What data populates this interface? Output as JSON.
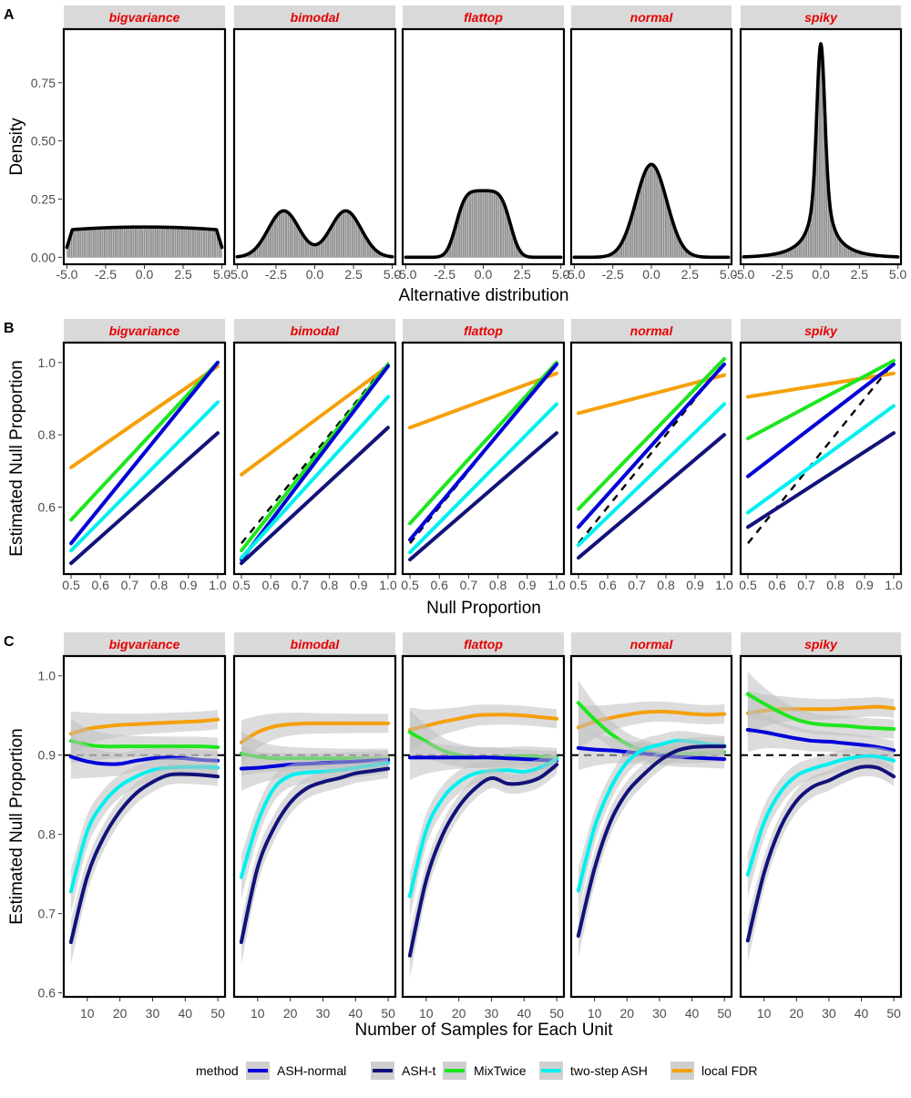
{
  "facets": [
    "bigvariance",
    "bimodal",
    "flattop",
    "normal",
    "spiky"
  ],
  "colors": {
    "ASH-normal": "#0000d8",
    "ASH-t": "#12127a",
    "MixTwice": "#1ee61e",
    "two-step ASH": "#00f0f0",
    "local FDR": "#f5a00a",
    "facet_label": "#e60000",
    "strip_bg": "#d9d9d9"
  },
  "panel_letters": [
    "A",
    "B",
    "C"
  ],
  "legend": {
    "title": "method",
    "items": [
      "ASH-normal",
      "ASH-t",
      "MixTwice",
      "two-step ASH",
      "local FDR"
    ]
  },
  "chart_data": [
    {
      "id": "A",
      "type": "area",
      "description_type": "density histogram with smooth density curve",
      "xlabel": "Alternative distribution",
      "ylabel": "Density",
      "xlim": [
        -5.2,
        5.2
      ],
      "ylim": [
        -0.03,
        0.98
      ],
      "xticks": [
        -5,
        -2.5,
        0,
        2.5,
        5
      ],
      "xticklabels": [
        "-5.0",
        "-2.5",
        "0.0",
        "2.5",
        "5.0"
      ],
      "yticks": [
        0,
        0.25,
        0.5,
        0.75
      ],
      "yticklabels": [
        "0.00",
        "0.25",
        "0.50",
        "0.75"
      ],
      "density_params": {
        "bigvariance": {
          "kind": "uniform_smooth",
          "height": 0.13,
          "range": [
            -5,
            5
          ]
        },
        "bimodal": {
          "kind": "mixture",
          "components": [
            {
              "mean": -2,
              "sd": 1,
              "weight": 0.5
            },
            {
              "mean": 2,
              "sd": 1,
              "weight": 0.5
            }
          ]
        },
        "flattop": {
          "kind": "mixture",
          "components": [
            {
              "mean": -1.5,
              "sd": 0.5,
              "weight": 0.143
            },
            {
              "mean": -1,
              "sd": 0.5,
              "weight": 0.143
            },
            {
              "mean": -0.5,
              "sd": 0.5,
              "weight": 0.143
            },
            {
              "mean": 0,
              "sd": 0.5,
              "weight": 0.143
            },
            {
              "mean": 0.5,
              "sd": 0.5,
              "weight": 0.143
            },
            {
              "mean": 1,
              "sd": 0.5,
              "weight": 0.143
            },
            {
              "mean": 1.5,
              "sd": 0.5,
              "weight": 0.142
            }
          ]
        },
        "normal": {
          "kind": "mixture",
          "components": [
            {
              "mean": 0,
              "sd": 1,
              "weight": 1
            }
          ]
        },
        "spiky": {
          "kind": "mixture",
          "components": [
            {
              "mean": 0,
              "sd": 0.25,
              "weight": 0.4
            },
            {
              "mean": 0,
              "sd": 0.5,
              "weight": 0.2
            },
            {
              "mean": 0,
              "sd": 1,
              "weight": 0.2
            },
            {
              "mean": 0,
              "sd": 2,
              "weight": 0.2
            }
          ]
        }
      }
    },
    {
      "id": "B",
      "type": "line",
      "xlabel": "Null Proportion",
      "ylabel": "Estimated Null Proportion",
      "xlim": [
        0.475,
        1.025
      ],
      "ylim": [
        0.415,
        1.055
      ],
      "xticks": [
        0.5,
        0.6,
        0.7,
        0.8,
        0.9,
        1.0
      ],
      "xticklabels": [
        "0.5",
        "0.6",
        "0.7",
        "0.8",
        "0.9",
        "1.0"
      ],
      "yticks": [
        0.6,
        0.8,
        1.0
      ],
      "yticklabels": [
        "0.6",
        "0.8",
        "1.0"
      ],
      "x": [
        0.5,
        1.0
      ],
      "reference_line": {
        "label": "y = x",
        "style": "dashed"
      },
      "series": {
        "bigvariance": [
          {
            "name": "local FDR",
            "values": [
              0.71,
              0.99
            ]
          },
          {
            "name": "MixTwice",
            "values": [
              0.565,
              1.0
            ]
          },
          {
            "name": "ASH-normal",
            "values": [
              0.5,
              1.0
            ]
          },
          {
            "name": "two-step ASH",
            "values": [
              0.48,
              0.89
            ]
          },
          {
            "name": "ASH-t",
            "values": [
              0.445,
              0.805
            ]
          }
        ],
        "bimodal": [
          {
            "name": "local FDR",
            "values": [
              0.69,
              0.99
            ]
          },
          {
            "name": "MixTwice",
            "values": [
              0.48,
              0.995
            ]
          },
          {
            "name": "ASH-normal",
            "values": [
              0.455,
              0.99
            ]
          },
          {
            "name": "two-step ASH",
            "values": [
              0.46,
              0.905
            ]
          },
          {
            "name": "ASH-t",
            "values": [
              0.445,
              0.82
            ]
          }
        ],
        "flattop": [
          {
            "name": "local FDR",
            "values": [
              0.82,
              0.97
            ]
          },
          {
            "name": "MixTwice",
            "values": [
              0.555,
              1.0
            ]
          },
          {
            "name": "ASH-normal",
            "values": [
              0.51,
              0.995
            ]
          },
          {
            "name": "two-step ASH",
            "values": [
              0.475,
              0.885
            ]
          },
          {
            "name": "ASH-t",
            "values": [
              0.455,
              0.805
            ]
          }
        ],
        "normal": [
          {
            "name": "local FDR",
            "values": [
              0.86,
              0.965
            ]
          },
          {
            "name": "MixTwice",
            "values": [
              0.595,
              1.01
            ]
          },
          {
            "name": "ASH-normal",
            "values": [
              0.545,
              0.995
            ]
          },
          {
            "name": "two-step ASH",
            "values": [
              0.495,
              0.885
            ]
          },
          {
            "name": "ASH-t",
            "values": [
              0.46,
              0.8
            ]
          }
        ],
        "spiky": [
          {
            "name": "local FDR",
            "values": [
              0.905,
              0.97
            ]
          },
          {
            "name": "MixTwice",
            "values": [
              0.79,
              1.005
            ]
          },
          {
            "name": "ASH-normal",
            "values": [
              0.685,
              0.995
            ]
          },
          {
            "name": "two-step ASH",
            "values": [
              0.585,
              0.88
            ]
          },
          {
            "name": "ASH-t",
            "values": [
              0.545,
              0.805
            ]
          }
        ]
      }
    },
    {
      "id": "C",
      "type": "line",
      "xlabel": "Number of Samples for Each Unit",
      "ylabel": "Estimated Null Proportion",
      "xlim": [
        2.8,
        52.2
      ],
      "ylim": [
        0.595,
        1.025
      ],
      "xticks": [
        10,
        20,
        30,
        40,
        50
      ],
      "xticklabels": [
        "10",
        "20",
        "30",
        "40",
        "50"
      ],
      "yticks": [
        0.6,
        0.7,
        0.8,
        0.9,
        1.0
      ],
      "yticklabels": [
        "0.6",
        "0.7",
        "0.8",
        "0.9",
        "1.0"
      ],
      "x": [
        5,
        10,
        15,
        20,
        25,
        30,
        35,
        40,
        45,
        50
      ],
      "reference_line": {
        "label": "y = 0.9",
        "value": 0.9,
        "style": "dashed"
      },
      "series": {
        "bigvariance": [
          {
            "name": "local FDR",
            "values": [
              0.927,
              0.933,
              0.936,
              0.938,
              0.939,
              0.94,
              0.941,
              0.942,
              0.943,
              0.945
            ]
          },
          {
            "name": "MixTwice",
            "values": [
              0.918,
              0.913,
              0.911,
              0.911,
              0.911,
              0.911,
              0.911,
              0.911,
              0.911,
              0.91
            ]
          },
          {
            "name": "ASH-normal",
            "values": [
              0.898,
              0.892,
              0.889,
              0.889,
              0.893,
              0.896,
              0.897,
              0.896,
              0.894,
              0.893
            ]
          },
          {
            "name": "two-step ASH",
            "values": [
              0.728,
              0.804,
              0.84,
              0.861,
              0.873,
              0.881,
              0.884,
              0.885,
              0.885,
              0.884
            ]
          },
          {
            "name": "ASH-t",
            "values": [
              0.664,
              0.747,
              0.796,
              0.829,
              0.852,
              0.866,
              0.875,
              0.876,
              0.875,
              0.873
            ]
          }
        ],
        "bimodal": [
          {
            "name": "local FDR",
            "values": [
              0.916,
              0.929,
              0.936,
              0.939,
              0.94,
              0.94,
              0.94,
              0.94,
              0.94,
              0.94
            ]
          },
          {
            "name": "MixTwice",
            "values": [
              0.902,
              0.898,
              0.896,
              0.896,
              0.896,
              0.896,
              0.896,
              0.896,
              0.896,
              0.896
            ]
          },
          {
            "name": "ASH-normal",
            "values": [
              0.883,
              0.884,
              0.886,
              0.888,
              0.889,
              0.89,
              0.891,
              0.892,
              0.893,
              0.894
            ]
          },
          {
            "name": "two-step ASH",
            "values": [
              0.746,
              0.815,
              0.858,
              0.874,
              0.878,
              0.879,
              0.881,
              0.884,
              0.887,
              0.89
            ]
          },
          {
            "name": "ASH-t",
            "values": [
              0.664,
              0.758,
              0.808,
              0.84,
              0.858,
              0.866,
              0.871,
              0.877,
              0.88,
              0.883
            ]
          }
        ],
        "flattop": [
          {
            "name": "local FDR",
            "values": [
              0.932,
              0.937,
              0.942,
              0.946,
              0.95,
              0.951,
              0.951,
              0.95,
              0.948,
              0.946
            ]
          },
          {
            "name": "MixTwice",
            "values": [
              0.929,
              0.917,
              0.906,
              0.9,
              0.897,
              0.897,
              0.898,
              0.899,
              0.898,
              0.897
            ]
          },
          {
            "name": "ASH-normal",
            "values": [
              0.897,
              0.897,
              0.897,
              0.897,
              0.897,
              0.897,
              0.896,
              0.895,
              0.894,
              0.893
            ]
          },
          {
            "name": "two-step ASH",
            "values": [
              0.722,
              0.805,
              0.845,
              0.866,
              0.877,
              0.88,
              0.881,
              0.879,
              0.884,
              0.895
            ]
          },
          {
            "name": "ASH-t",
            "values": [
              0.647,
              0.742,
              0.799,
              0.835,
              0.858,
              0.871,
              0.864,
              0.865,
              0.872,
              0.888
            ]
          }
        ],
        "normal": [
          {
            "name": "local FDR",
            "values": [
              0.935,
              0.942,
              0.947,
              0.951,
              0.954,
              0.955,
              0.954,
              0.952,
              0.951,
              0.952
            ]
          },
          {
            "name": "MixTwice",
            "values": [
              0.966,
              0.945,
              0.927,
              0.914,
              0.906,
              0.902,
              0.902,
              0.902,
              0.903,
              0.904
            ]
          },
          {
            "name": "ASH-normal",
            "values": [
              0.909,
              0.907,
              0.906,
              0.904,
              0.902,
              0.9,
              0.898,
              0.897,
              0.896,
              0.895
            ]
          },
          {
            "name": "two-step ASH",
            "values": [
              0.729,
              0.809,
              0.859,
              0.891,
              0.907,
              0.913,
              0.918,
              0.917,
              0.914,
              0.912
            ]
          },
          {
            "name": "ASH-t",
            "values": [
              0.672,
              0.757,
              0.817,
              0.853,
              0.875,
              0.893,
              0.905,
              0.91,
              0.911,
              0.911
            ]
          }
        ],
        "spiky": [
          {
            "name": "local FDR",
            "values": [
              0.953,
              0.956,
              0.958,
              0.958,
              0.958,
              0.958,
              0.959,
              0.96,
              0.961,
              0.959
            ]
          },
          {
            "name": "MixTwice",
            "values": [
              0.977,
              0.965,
              0.954,
              0.945,
              0.94,
              0.938,
              0.937,
              0.935,
              0.934,
              0.933
            ]
          },
          {
            "name": "ASH-normal",
            "values": [
              0.932,
              0.929,
              0.925,
              0.921,
              0.918,
              0.917,
              0.915,
              0.913,
              0.91,
              0.906
            ]
          },
          {
            "name": "two-step ASH",
            "values": [
              0.749,
              0.815,
              0.853,
              0.874,
              0.883,
              0.889,
              0.895,
              0.898,
              0.898,
              0.893
            ]
          },
          {
            "name": "ASH-t",
            "values": [
              0.666,
              0.751,
              0.808,
              0.842,
              0.86,
              0.868,
              0.878,
              0.885,
              0.884,
              0.873
            ]
          }
        ]
      }
    }
  ]
}
